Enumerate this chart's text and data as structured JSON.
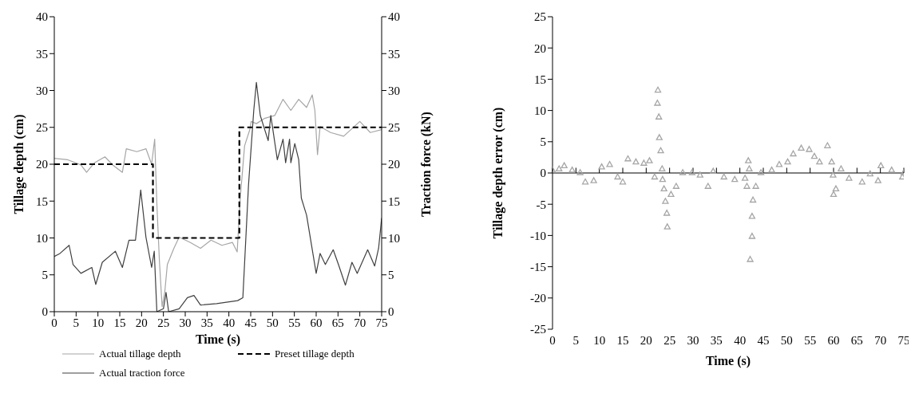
{
  "chart_data": [
    {
      "type": "line",
      "xlabel": "Time (s)",
      "ylabel": "Tillage depth (cm)",
      "y2label": "Traction force (kN)",
      "xlim": [
        0,
        75
      ],
      "xticks": [
        0,
        5,
        10,
        15,
        20,
        25,
        30,
        35,
        40,
        45,
        50,
        55,
        60,
        65,
        70,
        75
      ],
      "ylim": [
        0,
        40
      ],
      "yticks": [
        0,
        5,
        10,
        15,
        20,
        25,
        30,
        35,
        40
      ],
      "y2lim": [
        0,
        40
      ],
      "y2ticks": [
        0,
        5,
        10,
        15,
        20,
        25,
        30,
        35,
        40
      ],
      "grid": false,
      "legend": "bottom",
      "series": [
        {
          "name": "Actual tillage depth",
          "color": "#a6a6a6",
          "line_style": "solid",
          "x": [
            0,
            3.1,
            6.1,
            7.4,
            9.2,
            11.6,
            13.4,
            15.6,
            16.5,
            18.9,
            21,
            22.3,
            23,
            23.5,
            24.1,
            24.7,
            25.3,
            25.9,
            27.4,
            28.6,
            31.1,
            33.5,
            35.9,
            38.4,
            40.8,
            41.9,
            42.6,
            43.6,
            44.8,
            45.1,
            46.3,
            48.1,
            50.5,
            52.4,
            54.2,
            56,
            57.8,
            59.1,
            59.7,
            60.3,
            60.9,
            63.3,
            66.3,
            70,
            72.4,
            75
          ],
          "values": [
            20.8,
            20.6,
            19.9,
            18.9,
            20.2,
            21,
            19.9,
            18.9,
            22.1,
            21.7,
            22.1,
            20,
            23.4,
            14.6,
            6.7,
            0.7,
            2.6,
            6.4,
            8.6,
            10.1,
            9.4,
            8.6,
            9.7,
            9,
            9.4,
            8.1,
            15.4,
            22.5,
            24.7,
            25.8,
            25.5,
            26.2,
            26.6,
            28.8,
            27.3,
            28.8,
            27.7,
            29.4,
            27.3,
            21.3,
            25.1,
            24.3,
            23.8,
            25.8,
            24.3,
            24.7
          ]
        },
        {
          "name": "Preset tillage depth",
          "type": "step",
          "color": "#000000",
          "line_style": "dashed",
          "x": [
            0,
            22.6,
            42.4,
            75
          ],
          "values": [
            20,
            10,
            25,
            25
          ]
        },
        {
          "name": "Actual traction force",
          "color": "#404040",
          "line_style": "solid",
          "axis": "y2",
          "x": [
            0,
            1.3,
            3.4,
            4.3,
            6.1,
            8.6,
            9.5,
            11,
            14,
            15.6,
            17.1,
            18.6,
            19.8,
            21,
            22.3,
            22.9,
            23.5,
            25,
            25.6,
            26.2,
            28.6,
            30.5,
            32,
            33.5,
            37.2,
            42,
            43.2,
            44.5,
            45.7,
            46.3,
            47.2,
            49,
            49.6,
            51.1,
            52.4,
            53,
            53.9,
            54.2,
            55.1,
            56,
            56.6,
            57.8,
            60,
            60.9,
            62.1,
            63.9,
            65.1,
            66.7,
            68.2,
            69.4,
            71.8,
            73.4,
            74.3,
            75
          ],
          "values": [
            7.5,
            7.9,
            9,
            6.4,
            5.2,
            6,
            3.7,
            6.7,
            8.2,
            6,
            9.7,
            9.7,
            16.5,
            10.1,
            6,
            8.2,
            0,
            0.4,
            2.6,
            0,
            0.4,
            1.9,
            2.2,
            0.9,
            1.1,
            1.5,
            1.9,
            17.2,
            27.3,
            31.1,
            26.6,
            23.2,
            26.6,
            20.6,
            23.4,
            20.2,
            23.4,
            20.2,
            22.8,
            20.6,
            15.4,
            13.1,
            5.2,
            7.9,
            6.4,
            8.4,
            6.4,
            3.6,
            6.7,
            5.2,
            8.4,
            6.2,
            8.6,
            12.7
          ]
        }
      ]
    },
    {
      "type": "scatter",
      "xlabel": "Time (s)",
      "ylabel": "Tillage depth error (cm)",
      "xlim": [
        0,
        75
      ],
      "xticks": [
        0,
        5,
        10,
        15,
        20,
        25,
        30,
        35,
        40,
        45,
        50,
        55,
        60,
        65,
        70,
        75
      ],
      "ylim": [
        -25,
        25
      ],
      "yticks": [
        -25,
        -20,
        -15,
        -10,
        -5,
        0,
        5,
        10,
        15,
        20,
        25
      ],
      "grid": false,
      "marker": "triangle",
      "ref_lines": [
        {
          "axis": "y",
          "value": 0,
          "color": "#000000"
        }
      ],
      "series": [
        {
          "color": "#a6a6a6",
          "x": [
            0,
            1.4,
            2.5,
            4.2,
            5.9,
            7,
            8.8,
            10.5,
            12.2,
            13.9,
            15,
            16.1,
            17.8,
            19.5,
            20.7,
            21.8,
            22.4,
            22.5,
            22.7,
            22.8,
            23.1,
            23.4,
            23.5,
            23.8,
            24.1,
            24.4,
            24.5,
            25.3,
            26.4,
            27.8,
            29.8,
            31.5,
            33.2,
            34.3,
            36.6,
            38.9,
            41.1,
            41.5,
            41.8,
            42,
            42.2,
            42.6,
            42.6,
            42.8,
            43.4,
            44.5,
            46.8,
            48.4,
            50.2,
            51.4,
            53.1,
            54.8,
            55.9,
            57,
            58.7,
            59.6,
            59.9,
            60,
            60.5,
            61.6,
            63.3,
            66.1,
            67.8,
            69.5,
            70.1,
            72.4,
            74.7,
            75
          ],
          "values": [
            0.5,
            0.7,
            1.2,
            0.5,
            0.1,
            -1.4,
            -1.2,
            1,
            1.4,
            -0.6,
            -1.4,
            2.3,
            1.8,
            1.6,
            2,
            -0.6,
            11.2,
            13.3,
            9,
            5.7,
            3.6,
            0.7,
            -1,
            -2.5,
            -4.5,
            -6.4,
            -8.6,
            -3.4,
            -2.1,
            0.1,
            0.1,
            -0.3,
            -2.1,
            0.3,
            -0.6,
            -1,
            -0.8,
            -2.1,
            2,
            0.7,
            -13.8,
            -10.1,
            -6.9,
            -4.3,
            -2.1,
            0.1,
            0.5,
            1.4,
            1.8,
            3.1,
            4,
            3.8,
            2.7,
            1.8,
            4.4,
            1.8,
            -0.3,
            -3.4,
            -2.5,
            0.7,
            -0.8,
            -1.4,
            -0.1,
            -1.2,
            1.2,
            0.5,
            -0.6,
            0.1
          ]
        }
      ]
    }
  ]
}
